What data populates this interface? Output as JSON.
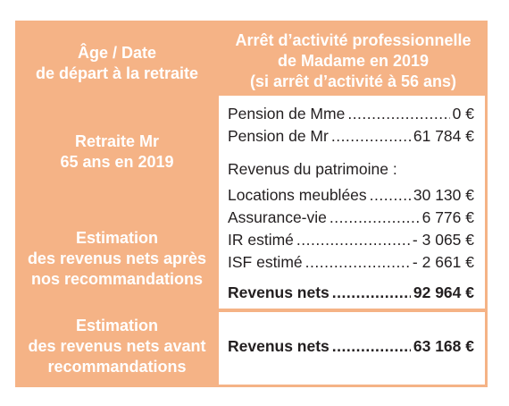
{
  "colors": {
    "accent": "#f5b386",
    "text": "#231f20"
  },
  "header_left": [
    "Âge / Date",
    "de départ à la retraite"
  ],
  "header_right": [
    "Arrêt d’activité professionnelle",
    "de Madame en 2019",
    "(si arrêt d’activité à 56 ans)"
  ],
  "row1_label": [
    "Retraite Mr",
    "65 ans en 2019"
  ],
  "row2_label": [
    "Estimation",
    "des revenus nets après",
    "nos recommandations"
  ],
  "row3_label": [
    "Estimation",
    "des revenus nets avant",
    "recommandations"
  ],
  "pensions": [
    {
      "label": "Pension de Mme",
      "value": "0 €"
    },
    {
      "label": "Pension de Mr",
      "value": "61 784 €"
    }
  ],
  "patrimoine_title": "Revenus du patrimoine :",
  "patrimoine": [
    {
      "label": "Locations meublées",
      "value": "30 130 €"
    },
    {
      "label": "Assurance-vie",
      "value": "6 776 €"
    },
    {
      "label": "IR estimé",
      "value": "- 3 065 €"
    },
    {
      "label": "ISF estimé",
      "value": "- 2 661 €"
    }
  ],
  "net_after": {
    "label": "Revenus nets",
    "value": "92 964 €"
  },
  "net_before": {
    "label": "Revenus nets",
    "value": "63 168 €"
  }
}
